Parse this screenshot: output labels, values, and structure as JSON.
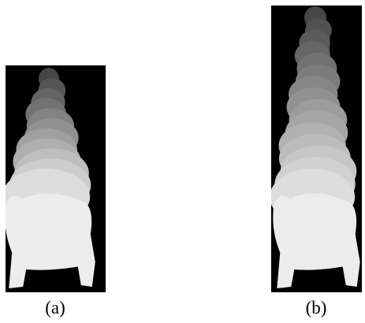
{
  "figures": [
    {
      "label": "(a)"
    },
    {
      "label": "(b)"
    }
  ]
}
